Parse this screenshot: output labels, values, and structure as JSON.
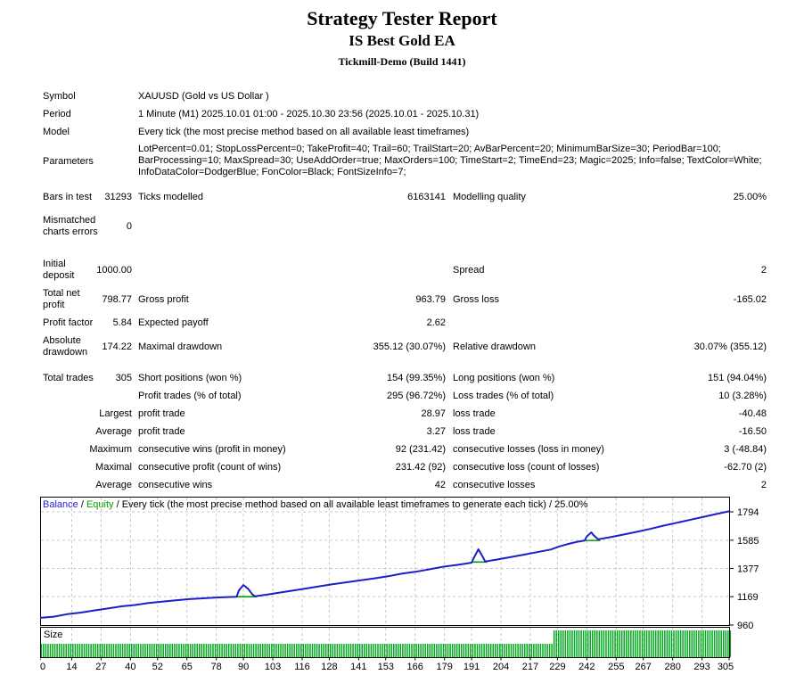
{
  "header": {
    "title": "Strategy Tester Report",
    "subtitle": "IS Best Gold EA",
    "server": "Tickmill-Demo (Build 1441)"
  },
  "table": {
    "symbol_label": "Symbol",
    "symbol_value": "XAUUSD (Gold vs US Dollar )",
    "period_label": "Period",
    "period_value": "1 Minute (M1) 2025.10.01 01:00 - 2025.10.30 23:56 (2025.10.01 - 2025.10.31)",
    "model_label": "Model",
    "model_value": "Every tick (the most precise method based on all available least timeframes)",
    "parameters_label": "Parameters",
    "parameters_line1": "LotPercent=0.01; StopLossPercent=0; TakeProfit=40; Trail=60; TrailStart=20; AvBarPercent=20; MinimumBarSize=30; PeriodBar=100;",
    "parameters_line2": "BarProcessing=10; MaxSpread=30; UseAddOrder=true; MaxOrders=100; TimeStart=2; TimeEnd=23; Magic=2025; Info=false; TextColor=White;",
    "parameters_line3": "InfoDataColor=DodgerBlue; FonColor=Black; FontSizeInfo=7;",
    "bars_in_test_label": "Bars in test",
    "bars_in_test_value": "31293",
    "ticks_modelled_label": "Ticks modelled",
    "ticks_modelled_value": "6163141",
    "modelling_quality_label": "Modelling quality",
    "modelling_quality_value": "25.00%",
    "mismatched_label": "Mismatched charts errors",
    "mismatched_value": "0",
    "initial_deposit_label": "Initial deposit",
    "initial_deposit_value": "1000.00",
    "spread_label": "Spread",
    "spread_value": "2",
    "total_net_profit_label": "Total net profit",
    "total_net_profit_value": "798.77",
    "gross_profit_label": "Gross profit",
    "gross_profit_value": "963.79",
    "gross_loss_label": "Gross loss",
    "gross_loss_value": "-165.02",
    "profit_factor_label": "Profit factor",
    "profit_factor_value": "5.84",
    "expected_payoff_label": "Expected payoff",
    "expected_payoff_value": "2.62",
    "absolute_drawdown_label": "Absolute drawdown",
    "absolute_drawdown_value": "174.22",
    "maximal_drawdown_label": "Maximal drawdown",
    "maximal_drawdown_value": "355.12 (30.07%)",
    "relative_drawdown_label": "Relative drawdown",
    "relative_drawdown_value": "30.07% (355.12)",
    "total_trades_label": "Total trades",
    "total_trades_value": "305",
    "short_positions_label": "Short positions (won %)",
    "short_positions_value": "154 (99.35%)",
    "long_positions_label": "Long positions (won %)",
    "long_positions_value": "151 (94.04%)",
    "profit_trades_label": "Profit trades (% of total)",
    "profit_trades_value": "295 (96.72%)",
    "loss_trades_label": "Loss trades (% of total)",
    "loss_trades_value": "10 (3.28%)",
    "largest_label": "Largest",
    "largest_profit_label": "profit trade",
    "largest_profit_value": "28.97",
    "largest_loss_label": "loss trade",
    "largest_loss_value": "-40.48",
    "average_label": "Average",
    "average_profit_label": "profit trade",
    "average_profit_value": "3.27",
    "average_loss_label": "loss trade",
    "average_loss_value": "-16.50",
    "maximum_label": "Maximum",
    "max_consec_wins_label": "consecutive wins (profit in money)",
    "max_consec_wins_value": "92 (231.42)",
    "max_consec_losses_label": "consecutive losses (loss in money)",
    "max_consec_losses_value": "3 (-48.84)",
    "maximal_label": "Maximal",
    "maximal_consec_profit_label": "consecutive profit (count of wins)",
    "maximal_consec_profit_value": "231.42 (92)",
    "maximal_consec_loss_label": "consecutive loss (count of losses)",
    "maximal_consec_loss_value": "-62.70 (2)",
    "avg_consec_label": "Average",
    "avg_consec_wins_label": "consecutive wins",
    "avg_consec_wins_value": "42",
    "avg_consec_losses_label": "consecutive losses",
    "avg_consec_losses_value": "2"
  },
  "chart_data": {
    "type": "line",
    "legend": {
      "balance": "Balance",
      "equity": "Equity",
      "separator": " / ",
      "description": "Every tick (the most precise method based on all available least timeframes to generate each tick) / 25.00%"
    },
    "size_label": "Size",
    "x_ticks": [
      0,
      14,
      27,
      40,
      52,
      65,
      78,
      90,
      103,
      116,
      128,
      141,
      153,
      166,
      179,
      191,
      204,
      217,
      229,
      242,
      255,
      267,
      280,
      293,
      305
    ],
    "y_ticks": [
      1794,
      1585,
      1377,
      1169,
      960
    ],
    "x_range": [
      0,
      305
    ],
    "y_range": [
      960,
      1794
    ],
    "series": [
      {
        "name": "Balance",
        "points": [
          [
            0,
            1013
          ],
          [
            6,
            1022
          ],
          [
            12,
            1040
          ],
          [
            18,
            1052
          ],
          [
            24,
            1068
          ],
          [
            30,
            1082
          ],
          [
            36,
            1098
          ],
          [
            42,
            1108
          ],
          [
            48,
            1122
          ],
          [
            54,
            1133
          ],
          [
            60,
            1142
          ],
          [
            66,
            1151
          ],
          [
            72,
            1157
          ],
          [
            78,
            1163
          ],
          [
            83,
            1166
          ],
          [
            87,
            1169
          ],
          [
            88,
            1215
          ],
          [
            90,
            1255
          ],
          [
            92,
            1228
          ],
          [
            94,
            1185
          ],
          [
            95,
            1172
          ],
          [
            100,
            1183
          ],
          [
            106,
            1199
          ],
          [
            112,
            1215
          ],
          [
            118,
            1230
          ],
          [
            124,
            1246
          ],
          [
            130,
            1262
          ],
          [
            136,
            1276
          ],
          [
            142,
            1290
          ],
          [
            148,
            1304
          ],
          [
            154,
            1319
          ],
          [
            160,
            1338
          ],
          [
            166,
            1352
          ],
          [
            172,
            1370
          ],
          [
            178,
            1388
          ],
          [
            184,
            1402
          ],
          [
            188,
            1412
          ],
          [
            191,
            1420
          ],
          [
            192,
            1455
          ],
          [
            194,
            1518
          ],
          [
            196,
            1462
          ],
          [
            197,
            1428
          ],
          [
            202,
            1442
          ],
          [
            208,
            1460
          ],
          [
            214,
            1478
          ],
          [
            220,
            1497
          ],
          [
            226,
            1516
          ],
          [
            230,
            1540
          ],
          [
            234,
            1558
          ],
          [
            238,
            1574
          ],
          [
            241,
            1582
          ],
          [
            242,
            1612
          ],
          [
            244,
            1643
          ],
          [
            245,
            1622
          ],
          [
            247,
            1592
          ],
          [
            252,
            1606
          ],
          [
            258,
            1626
          ],
          [
            264,
            1646
          ],
          [
            270,
            1668
          ],
          [
            276,
            1692
          ],
          [
            282,
            1714
          ],
          [
            288,
            1736
          ],
          [
            294,
            1758
          ],
          [
            299,
            1777
          ],
          [
            305,
            1798
          ]
        ]
      },
      {
        "name": "Equity",
        "segments": [
          [
            [
              86,
              1169
            ],
            [
              96,
              1169
            ]
          ],
          [
            [
              191,
              1424
            ],
            [
              198,
              1424
            ]
          ],
          [
            [
              241,
              1583
            ],
            [
              248,
              1583
            ]
          ]
        ]
      }
    ],
    "size_bars": {
      "count": 306,
      "tall_from_trade": 227,
      "short_height": 15,
      "tall_height": 30
    },
    "colors": {
      "balance": "#1E1EC8",
      "equity": "#00A000",
      "bars": "#00A81E",
      "grid": "#C8C8C8",
      "border": "#000000",
      "balance_label": "#2222D8",
      "equity_label": "#00A000"
    }
  }
}
